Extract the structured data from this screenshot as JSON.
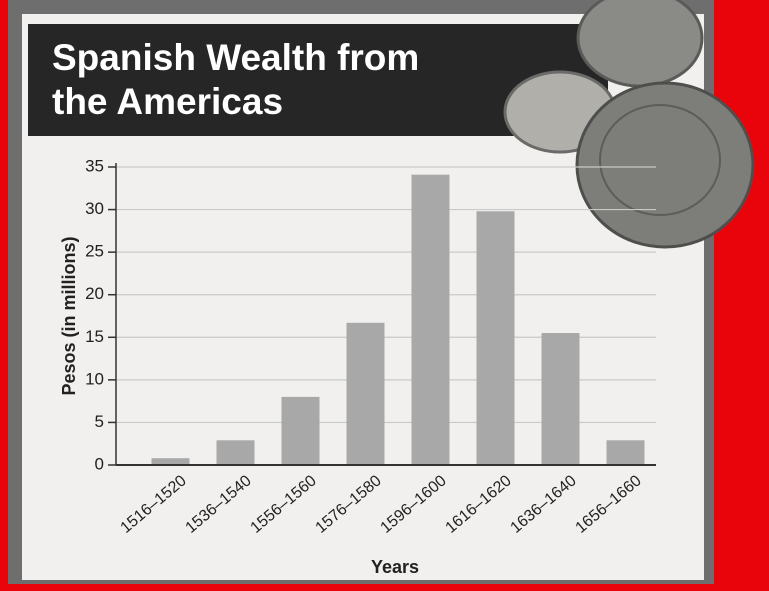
{
  "chart_data": {
    "type": "bar",
    "title": "Spanish Wealth from the Americas",
    "categories": [
      "1516–1520",
      "1536–1540",
      "1556–1560",
      "1576–1580",
      "1596–1600",
      "1616–1620",
      "1636–1640",
      "1656–1660"
    ],
    "values": [
      0.8,
      2.9,
      8.0,
      16.7,
      34.1,
      29.8,
      15.5,
      2.9
    ],
    "color": "#a8a8a8",
    "x_label": "Years",
    "y_label": "Pesos (in millions)",
    "ylim": [
      0,
      35
    ],
    "yticks": [
      0,
      5,
      10,
      15,
      20,
      25,
      30,
      35
    ],
    "grid": true
  }
}
